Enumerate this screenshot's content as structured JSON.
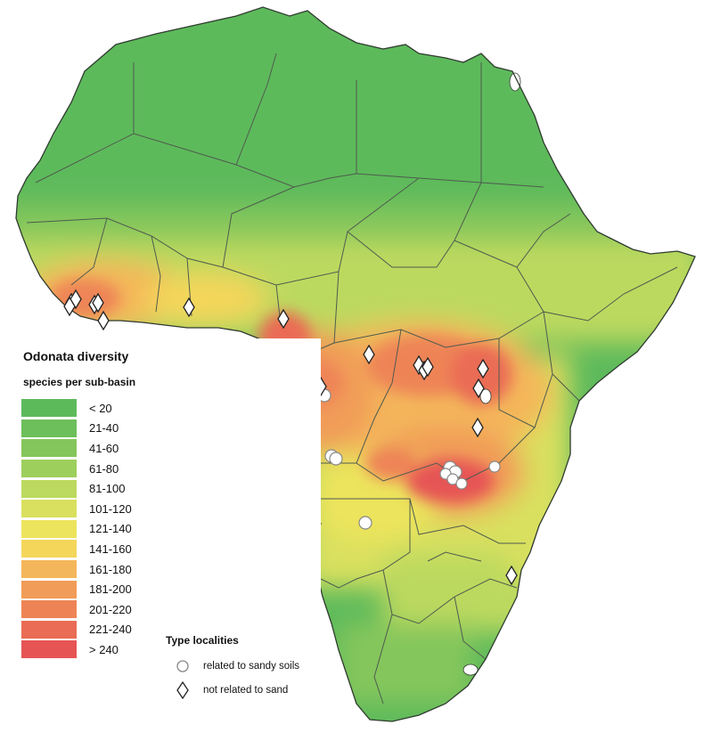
{
  "legend": {
    "title": "Odonata diversity",
    "subtitle": "species per sub-basin",
    "classes": [
      {
        "label": "< 20",
        "color": "#5dba5b"
      },
      {
        "label": "21-40",
        "color": "#6cbf5a"
      },
      {
        "label": "41-60",
        "color": "#84c65b"
      },
      {
        "label": "61-80",
        "color": "#9dcf5c"
      },
      {
        "label": "81-100",
        "color": "#bcd95f"
      },
      {
        "label": "101-120",
        "color": "#d9e05f"
      },
      {
        "label": "121-140",
        "color": "#ece45c"
      },
      {
        "label": "141-160",
        "color": "#f4d65a"
      },
      {
        "label": "161-180",
        "color": "#f4b65a"
      },
      {
        "label": "181-200",
        "color": "#f19c58"
      },
      {
        "label": "201-220",
        "color": "#ee8456"
      },
      {
        "label": "221-240",
        "color": "#ea6c54"
      },
      {
        "label": "> 240",
        "color": "#e65454"
      }
    ]
  },
  "type_localities": {
    "title": "Type localities",
    "sandy": "related to sandy soils",
    "not_sandy": "not related to sand"
  },
  "colors": {
    "sea": "#ffffff",
    "border": "#4f5b4f",
    "outline": "#2f3a2f"
  }
}
